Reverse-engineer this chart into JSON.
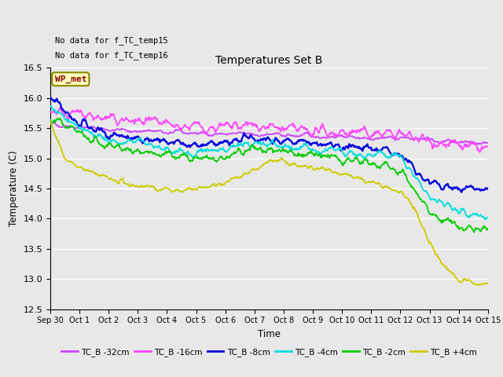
{
  "title": "Temperatures Set B",
  "xlabel": "Time",
  "ylabel": "Temperature (C)",
  "ylim": [
    12.5,
    16.5
  ],
  "background_color": "#e8e8e8",
  "plot_bg_color": "#e8e8e8",
  "grid_color": "white",
  "annotations": [
    "No data for f_TC_temp15",
    "No data for f_TC_temp16"
  ],
  "wp_met_label": "WP_met",
  "wp_met_color": "#880000",
  "wp_met_bg": "#ffffbb",
  "wp_met_edge": "#888800",
  "xtick_labels": [
    "Sep 30",
    "Oct 1",
    "Oct 2",
    "Oct 3",
    "Oct 4",
    "Oct 5",
    "Oct 6",
    "Oct 7",
    "Oct 8",
    "Oct 9",
    "Oct 10",
    "Oct 11",
    "Oct 12",
    "Oct 13",
    "Oct 14",
    "Oct 15"
  ],
  "series_labels": [
    "TC_B -32cm",
    "TC_B -16cm",
    "TC_B -8cm",
    "TC_B -4cm",
    "TC_B -2cm",
    "TC_B +4cm"
  ],
  "series_colors": [
    "#cc44ff",
    "#ff44ff",
    "#0000dd",
    "#00dddd",
    "#00cc00",
    "#cccc00"
  ],
  "n_points": 720,
  "seed": 42
}
